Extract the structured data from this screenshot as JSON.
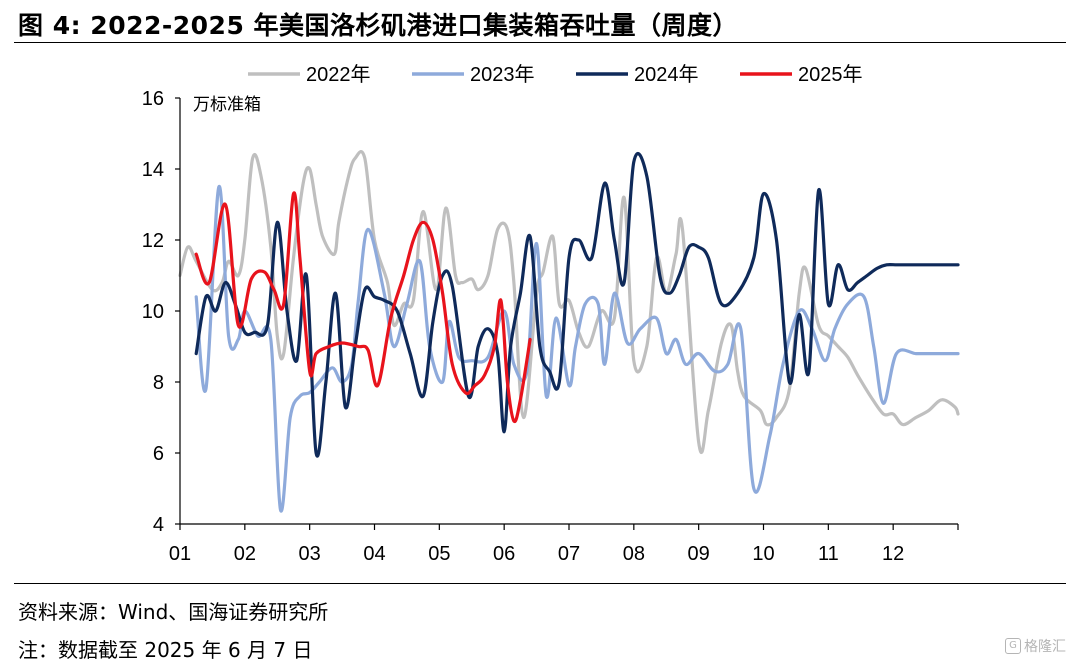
{
  "figure": {
    "title": "图 4:  2022-2025 年美国洛杉矶港进口集装箱吞吐量（周度）",
    "source": "资料来源：Wind、国海证券研究所",
    "note": "注：数据截至 2025 年 6 月 7 日",
    "watermark": "格隆汇",
    "watermark_logo": "G"
  },
  "chart_data": {
    "type": "line",
    "title": "",
    "xlabel": "",
    "ylabel": "万标准箱",
    "ylim": [
      4,
      16
    ],
    "yticks": [
      4,
      6,
      8,
      10,
      12,
      14,
      16
    ],
    "xlim": [
      1,
      13
    ],
    "xticks": [
      "01",
      "02",
      "03",
      "04",
      "05",
      "06",
      "07",
      "08",
      "09",
      "10",
      "11",
      "12"
    ],
    "grid": false,
    "legend_position": "top",
    "series": [
      {
        "name": "2022年",
        "color": "#bfbfbf",
        "x": [
          1.0,
          1.12,
          1.25,
          1.5,
          1.65,
          1.75,
          1.9,
          2.0,
          2.12,
          2.25,
          2.4,
          2.5,
          2.6,
          2.75,
          2.9,
          3.0,
          3.1,
          3.2,
          3.38,
          3.45,
          3.6,
          3.7,
          3.85,
          4.0,
          4.2,
          4.3,
          4.45,
          4.6,
          4.75,
          4.95,
          5.1,
          5.25,
          5.35,
          5.5,
          5.6,
          5.75,
          5.9,
          6.05,
          6.15,
          6.3,
          6.5,
          6.6,
          6.75,
          6.85,
          7.0,
          7.15,
          7.3,
          7.5,
          7.7,
          7.85,
          8.0,
          8.2,
          8.35,
          8.5,
          8.65,
          8.75,
          9.0,
          9.15,
          9.35,
          9.5,
          9.6,
          9.7,
          9.95,
          10.05,
          10.2,
          10.4,
          10.55,
          10.65,
          10.85,
          11.0,
          11.15,
          11.3,
          11.45,
          11.65,
          11.85,
          12.0,
          12.15,
          12.35,
          12.55,
          12.75,
          12.95,
          13.0
        ],
        "y": [
          11.0,
          11.8,
          11.4,
          10.6,
          10.8,
          11.4,
          11.0,
          12.0,
          14.3,
          13.8,
          11.8,
          9.3,
          8.8,
          11.5,
          13.6,
          14.0,
          13.0,
          12.1,
          11.6,
          12.5,
          13.8,
          14.3,
          14.3,
          12.0,
          10.8,
          9.6,
          10.2,
          10.3,
          12.8,
          10.6,
          12.9,
          11.0,
          10.8,
          10.9,
          10.6,
          11.0,
          12.3,
          12.3,
          10.8,
          7.0,
          10.5,
          11.1,
          12.1,
          10.2,
          10.3,
          9.4,
          9.0,
          10.0,
          9.8,
          13.2,
          8.6,
          9.0,
          11.5,
          10.5,
          11.6,
          12.3,
          6.3,
          7.2,
          9.1,
          9.6,
          8.3,
          7.6,
          7.2,
          6.8,
          7.0,
          7.8,
          10.5,
          11.2,
          9.6,
          9.3,
          9.0,
          8.7,
          8.2,
          7.6,
          7.1,
          7.1,
          6.8,
          7.0,
          7.2,
          7.5,
          7.3,
          7.1
        ]
      },
      {
        "name": "2023年",
        "color": "#8eaadb",
        "x": [
          1.25,
          1.4,
          1.6,
          1.75,
          1.9,
          2.0,
          2.2,
          2.4,
          2.55,
          2.7,
          2.85,
          3.0,
          3.15,
          3.35,
          3.5,
          3.65,
          3.75,
          3.9,
          4.15,
          4.3,
          4.5,
          4.7,
          4.85,
          5.05,
          5.15,
          5.3,
          5.5,
          5.75,
          6.0,
          6.15,
          6.35,
          6.5,
          6.65,
          6.8,
          7.0,
          7.1,
          7.25,
          7.45,
          7.55,
          7.7,
          7.9,
          8.1,
          8.35,
          8.5,
          8.65,
          8.8,
          9.0,
          9.25,
          9.45,
          9.65,
          9.85,
          10.1,
          10.3,
          10.55,
          10.75,
          10.95,
          11.1,
          11.3,
          11.55,
          11.7,
          11.85,
          12.05,
          12.35,
          12.55,
          12.75,
          12.95,
          13.0
        ],
        "y": [
          10.4,
          7.8,
          13.5,
          9.3,
          9.2,
          10.0,
          9.3,
          9.2,
          4.4,
          7.0,
          7.6,
          7.7,
          8.0,
          8.4,
          8.0,
          8.5,
          10.3,
          12.3,
          10.5,
          9.0,
          10.2,
          11.4,
          9.0,
          8.0,
          9.7,
          8.7,
          8.6,
          8.7,
          10.0,
          8.5,
          8.3,
          11.9,
          7.6,
          9.8,
          7.9,
          9.0,
          10.2,
          10.2,
          8.5,
          10.5,
          9.1,
          9.5,
          9.8,
          8.8,
          9.2,
          8.5,
          8.8,
          8.3,
          8.5,
          9.5,
          5.0,
          6.5,
          8.5,
          10.0,
          9.5,
          8.6,
          9.5,
          10.2,
          10.4,
          9.0,
          7.4,
          8.8,
          8.8,
          8.8,
          8.8,
          8.8,
          8.8
        ]
      },
      {
        "name": "2024年",
        "color": "#0f2a5a",
        "x": [
          1.25,
          1.4,
          1.55,
          1.7,
          1.85,
          2.0,
          2.15,
          2.35,
          2.5,
          2.65,
          2.8,
          2.95,
          3.1,
          3.25,
          3.4,
          3.55,
          3.7,
          3.85,
          4.0,
          4.15,
          4.35,
          4.55,
          4.75,
          4.9,
          5.05,
          5.2,
          5.45,
          5.6,
          5.75,
          5.9,
          6.0,
          6.1,
          6.25,
          6.4,
          6.55,
          6.7,
          6.85,
          7.0,
          7.15,
          7.35,
          7.55,
          7.7,
          7.85,
          8.0,
          8.2,
          8.4,
          8.55,
          8.7,
          8.85,
          9.0,
          9.15,
          9.35,
          9.6,
          9.85,
          10.0,
          10.2,
          10.4,
          10.55,
          10.7,
          10.85,
          11.0,
          11.15,
          11.3,
          11.45,
          11.6,
          11.75,
          11.9,
          12.05,
          12.2,
          12.4,
          12.55,
          12.7,
          12.9,
          13.0
        ],
        "y": [
          8.8,
          10.4,
          10.0,
          10.8,
          10.2,
          9.4,
          9.4,
          9.6,
          12.5,
          10.0,
          8.6,
          11.0,
          6.0,
          8.0,
          10.5,
          7.3,
          9.0,
          10.6,
          10.4,
          10.3,
          10.0,
          8.8,
          7.6,
          9.7,
          11.0,
          10.7,
          7.6,
          9.0,
          9.5,
          8.8,
          6.6,
          9.0,
          10.5,
          12.1,
          9.0,
          8.3,
          8.0,
          11.5,
          12.0,
          11.5,
          13.6,
          12.0,
          10.8,
          14.2,
          13.8,
          11.0,
          10.5,
          11.0,
          11.8,
          11.8,
          11.5,
          10.2,
          10.5,
          11.5,
          13.3,
          12.0,
          8.0,
          9.9,
          8.3,
          13.4,
          10.2,
          11.3,
          10.6,
          10.8,
          11.0,
          11.2,
          11.3,
          11.3,
          11.3,
          11.3,
          11.3,
          11.3,
          11.3,
          11.3
        ]
      },
      {
        "name": "2025年",
        "color": "#e8131c",
        "x": [
          1.25,
          1.45,
          1.7,
          1.9,
          2.1,
          2.3,
          2.45,
          2.6,
          2.75,
          2.85,
          3.0,
          3.1,
          3.3,
          3.5,
          3.75,
          3.9,
          4.05,
          4.25,
          4.45,
          4.6,
          4.75,
          4.9,
          5.05,
          5.2,
          5.4,
          5.55,
          5.7,
          5.85,
          5.95,
          6.05,
          6.15,
          6.25,
          6.4
        ],
        "y": [
          11.6,
          10.8,
          13.0,
          9.6,
          10.9,
          11.1,
          10.6,
          10.2,
          13.3,
          11.5,
          8.3,
          8.8,
          9.0,
          9.1,
          9.0,
          8.9,
          7.9,
          9.8,
          11.0,
          12.0,
          12.5,
          12.0,
          10.5,
          8.5,
          7.7,
          7.9,
          8.2,
          9.0,
          10.3,
          8.0,
          6.9,
          7.5,
          9.2
        ]
      }
    ]
  }
}
